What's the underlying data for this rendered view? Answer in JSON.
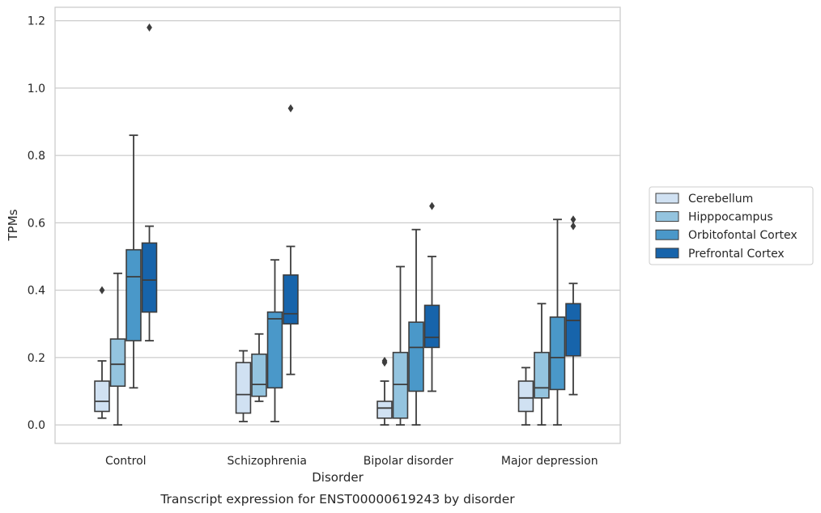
{
  "chart_data": {
    "type": "boxplot",
    "caption": "Transcript expression for ENST00000619243 by disorder",
    "xlabel": "Disorder",
    "ylabel": "TPMs",
    "ylim": [
      -0.055,
      1.24
    ],
    "yticks": [
      0.0,
      0.2,
      0.4,
      0.6,
      0.8,
      1.0,
      1.2
    ],
    "ytick_labels": [
      "0.0",
      "0.2",
      "0.4",
      "0.6",
      "0.8",
      "1.0",
      "1.2"
    ],
    "grid": "horizontal",
    "legend_position": "right",
    "categories": [
      "Control",
      "Schizophrenia",
      "Bipolar disorder",
      "Major depression"
    ],
    "series": [
      {
        "name": "Cerebellum",
        "color": "#d0e1f2",
        "boxes": [
          {
            "whislo": 0.02,
            "q1": 0.04,
            "med": 0.07,
            "q3": 0.13,
            "whishi": 0.19,
            "fliers": [
              0.4
            ]
          },
          {
            "whislo": 0.01,
            "q1": 0.035,
            "med": 0.09,
            "q3": 0.185,
            "whishi": 0.22,
            "fliers": []
          },
          {
            "whislo": 0.0,
            "q1": 0.02,
            "med": 0.05,
            "q3": 0.07,
            "whishi": 0.13,
            "fliers": [
              0.19,
              0.185
            ]
          },
          {
            "whislo": 0.0,
            "q1": 0.04,
            "med": 0.08,
            "q3": 0.13,
            "whishi": 0.17,
            "fliers": []
          }
        ]
      },
      {
        "name": "Hipppocampus",
        "color": "#94c4df",
        "boxes": [
          {
            "whislo": 0.0,
            "q1": 0.115,
            "med": 0.18,
            "q3": 0.255,
            "whishi": 0.45,
            "fliers": []
          },
          {
            "whislo": 0.07,
            "q1": 0.085,
            "med": 0.12,
            "q3": 0.21,
            "whishi": 0.27,
            "fliers": []
          },
          {
            "whislo": 0.0,
            "q1": 0.02,
            "med": 0.12,
            "q3": 0.215,
            "whishi": 0.47,
            "fliers": []
          },
          {
            "whislo": 0.0,
            "q1": 0.08,
            "med": 0.11,
            "q3": 0.215,
            "whishi": 0.36,
            "fliers": []
          }
        ]
      },
      {
        "name": "Orbitofontal Cortex",
        "color": "#4a98c9",
        "boxes": [
          {
            "whislo": 0.11,
            "q1": 0.25,
            "med": 0.44,
            "q3": 0.52,
            "whishi": 0.86,
            "fliers": []
          },
          {
            "whislo": 0.01,
            "q1": 0.11,
            "med": 0.315,
            "q3": 0.335,
            "whishi": 0.49,
            "fliers": []
          },
          {
            "whislo": 0.0,
            "q1": 0.1,
            "med": 0.23,
            "q3": 0.305,
            "whishi": 0.58,
            "fliers": []
          },
          {
            "whislo": 0.0,
            "q1": 0.105,
            "med": 0.2,
            "q3": 0.32,
            "whishi": 0.61,
            "fliers": []
          }
        ]
      },
      {
        "name": "Prefrontal Cortex",
        "color": "#1764ab",
        "boxes": [
          {
            "whislo": 0.25,
            "q1": 0.335,
            "med": 0.43,
            "q3": 0.54,
            "whishi": 0.59,
            "fliers": [
              1.18
            ]
          },
          {
            "whislo": 0.15,
            "q1": 0.3,
            "med": 0.33,
            "q3": 0.445,
            "whishi": 0.53,
            "fliers": [
              0.94
            ]
          },
          {
            "whislo": 0.1,
            "q1": 0.23,
            "med": 0.26,
            "q3": 0.355,
            "whishi": 0.5,
            "fliers": [
              0.65
            ]
          },
          {
            "whislo": 0.09,
            "q1": 0.205,
            "med": 0.31,
            "q3": 0.36,
            "whishi": 0.42,
            "fliers": [
              0.61,
              0.59
            ]
          }
        ]
      }
    ]
  }
}
